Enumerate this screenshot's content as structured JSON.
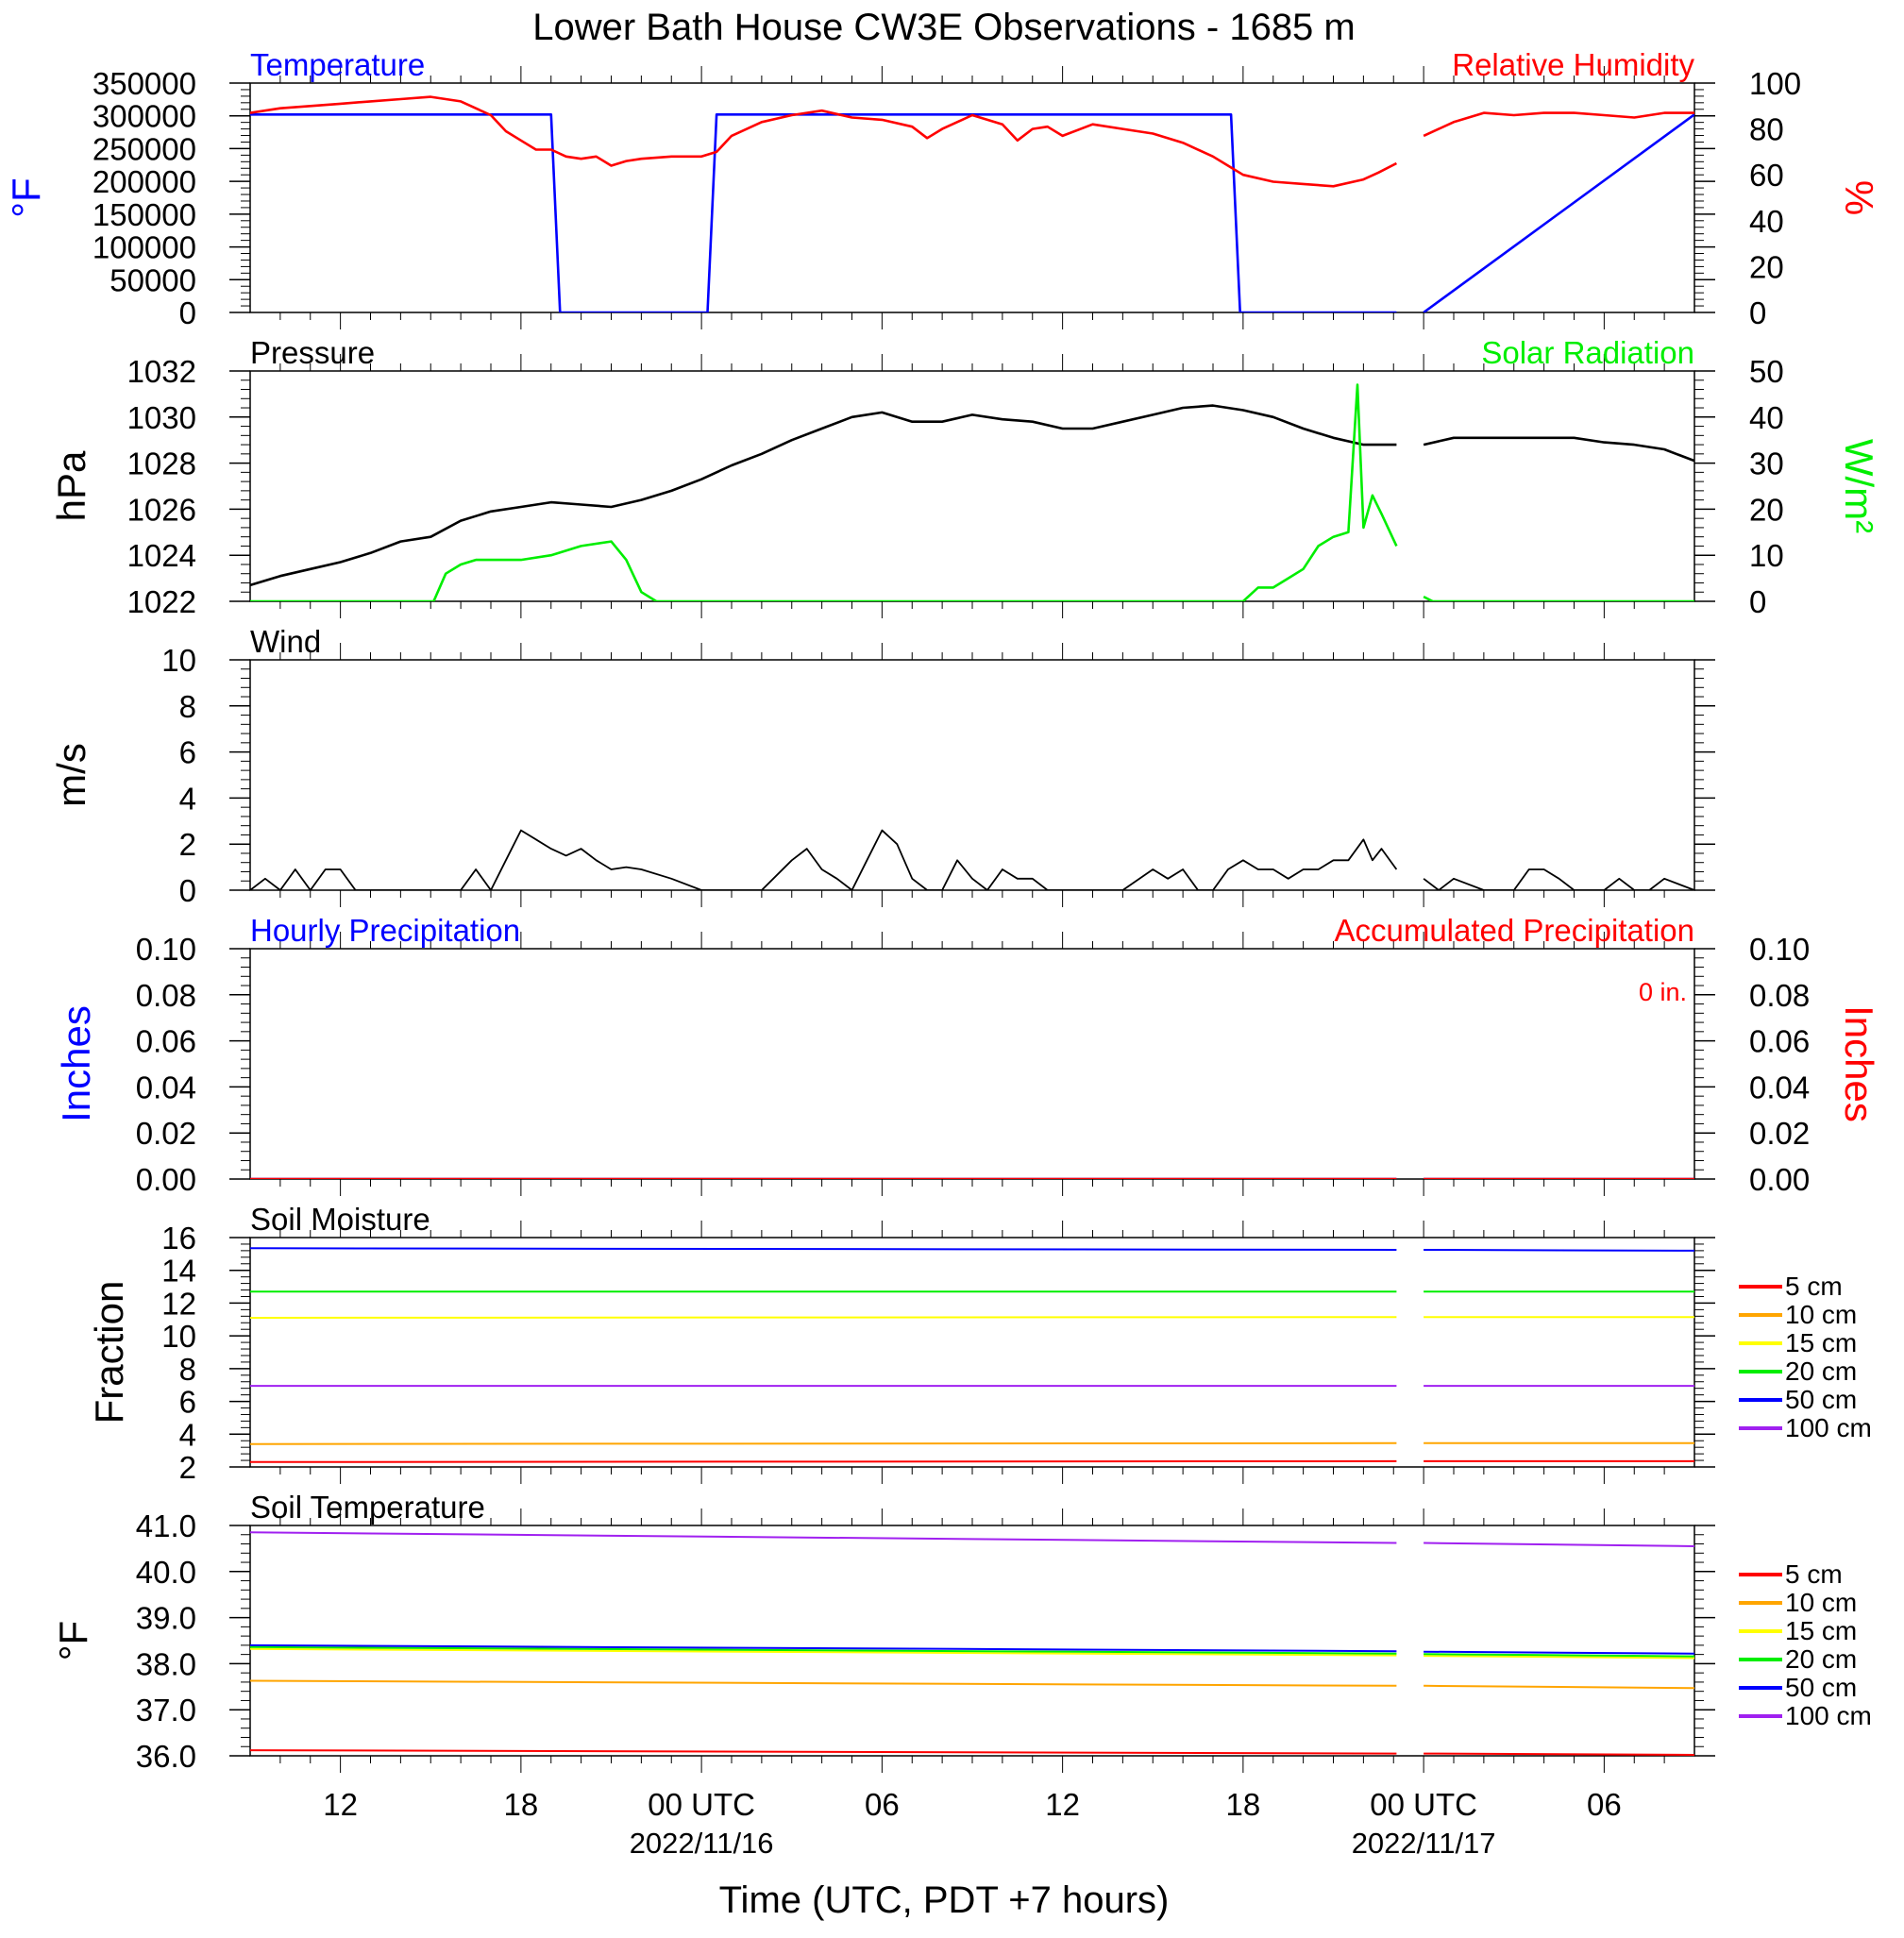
{
  "title": "Lower Bath House CW3E Observations - 1685 m",
  "xlabel": "Time (UTC, PDT +7 hours)",
  "x_ticks": [
    {
      "hour": 12,
      "label": "12",
      "sub": ""
    },
    {
      "hour": 18,
      "label": "18",
      "sub": ""
    },
    {
      "hour": 24,
      "label": "00 UTC",
      "sub": "2022/11/16"
    },
    {
      "hour": 30,
      "label": "06",
      "sub": ""
    },
    {
      "hour": 36,
      "label": "12",
      "sub": ""
    },
    {
      "hour": 42,
      "label": "18",
      "sub": ""
    },
    {
      "hour": 48,
      "label": "00 UTC",
      "sub": "2022/11/17"
    },
    {
      "hour": 54,
      "label": "06",
      "sub": ""
    }
  ],
  "x_range_hours": [
    9,
    57
  ],
  "data_gap_hours": [
    47.2,
    48.0
  ],
  "colors": {
    "temperature": "#0000ff",
    "rh": "#ff0000",
    "solar": "#00ee00",
    "black": "#000000",
    "soil": [
      "#ff0000",
      "#ffa500",
      "#ffff00",
      "#00ee00",
      "#0000ff",
      "#a020f0"
    ]
  },
  "legend_labels": [
    "5 cm",
    "10 cm",
    "15 cm",
    "20 cm",
    "50 cm",
    "100 cm"
  ],
  "chart_data": [
    {
      "type": "line",
      "title_left": "Temperature",
      "title_right": "Relative Humidity",
      "ylabel_left": "°F",
      "ylabel_right": "%",
      "ylim_left": [
        0,
        350000
      ],
      "ylim_right": [
        0,
        100
      ],
      "yticks_left": [
        "0",
        "50000",
        "100000",
        "150000",
        "200000",
        "250000",
        "300000",
        "350000"
      ],
      "yticks_right": [
        "0",
        "20",
        "40",
        "60",
        "80",
        "100"
      ],
      "series": [
        {
          "name": "Temperature",
          "axis": "left",
          "x": [
            9,
            19,
            19.3,
            24.2,
            24.5,
            41.6,
            41.9,
            47.1,
            47.7,
            48.0,
            57
          ],
          "y": [
            302000,
            302000,
            0,
            0,
            302000,
            302000,
            0,
            0,
            null,
            0,
            302000
          ]
        },
        {
          "name": "Relative Humidity",
          "axis": "right",
          "x": [
            9,
            10,
            11,
            12,
            13,
            14,
            15,
            16,
            17,
            17.5,
            18,
            18.5,
            19,
            19.5,
            20,
            20.5,
            21,
            21.5,
            22,
            23,
            24,
            24.5,
            25,
            26,
            27,
            28,
            29,
            30,
            31,
            31.5,
            32,
            33,
            34,
            34.5,
            35,
            35.5,
            36,
            37,
            38,
            39,
            40,
            41,
            41.5,
            42,
            43,
            44,
            45,
            46,
            46.5,
            47.1,
            47.7,
            48,
            48.5,
            49,
            50,
            51,
            52,
            53,
            54,
            55,
            56,
            57
          ],
          "y": [
            87,
            89,
            90,
            91,
            92,
            93,
            94,
            92,
            86,
            79,
            75,
            71,
            71,
            68,
            67,
            68,
            64,
            66,
            67,
            68,
            68,
            70,
            77,
            83,
            86,
            88,
            85,
            84,
            81,
            76,
            80,
            86,
            82,
            75,
            80,
            81,
            77,
            82,
            80,
            78,
            74,
            68,
            64,
            60,
            57,
            56,
            55,
            58,
            61,
            65,
            null,
            77,
            80,
            83,
            87,
            86,
            87,
            87,
            86,
            85,
            87,
            87
          ]
        }
      ]
    },
    {
      "type": "line",
      "title_left": "Pressure",
      "title_right": "Solar Radiation",
      "ylabel_left": "hPa",
      "ylabel_right": "W/m²",
      "ylim_left": [
        1022,
        1032
      ],
      "ylim_right": [
        0,
        50
      ],
      "yticks_left": [
        "1022",
        "1024",
        "1026",
        "1028",
        "1030",
        "1032"
      ],
      "yticks_right": [
        "0",
        "10",
        "20",
        "30",
        "40",
        "50"
      ],
      "series": [
        {
          "name": "Pressure",
          "axis": "left",
          "x": [
            9,
            10,
            11,
            12,
            13,
            14,
            15,
            16,
            17,
            18,
            19,
            20,
            21,
            22,
            23,
            24,
            25,
            26,
            27,
            28,
            29,
            30,
            31,
            32,
            33,
            34,
            35,
            36,
            37,
            38,
            39,
            40,
            41,
            42,
            43,
            44,
            45,
            46,
            47.1,
            47.7,
            48.0,
            49,
            50,
            51,
            52,
            53,
            54,
            55,
            56,
            57
          ],
          "y": [
            1022.7,
            1023.1,
            1023.4,
            1023.7,
            1024.1,
            1024.6,
            1024.8,
            1025.5,
            1025.9,
            1026.1,
            1026.3,
            1026.2,
            1026.1,
            1026.4,
            1026.8,
            1027.3,
            1027.9,
            1028.4,
            1029.0,
            1029.5,
            1030.0,
            1030.2,
            1029.8,
            1029.8,
            1030.1,
            1029.9,
            1029.8,
            1029.5,
            1029.5,
            1029.8,
            1030.1,
            1030.4,
            1030.5,
            1030.3,
            1030.0,
            1029.5,
            1029.1,
            1028.8,
            1028.8,
            null,
            1028.8,
            1029.1,
            1029.1,
            1029.1,
            1029.1,
            1029.1,
            1028.9,
            1028.8,
            1028.6,
            1028.1
          ]
        },
        {
          "name": "Solar Radiation",
          "axis": "right",
          "x": [
            9,
            15.1,
            15.5,
            16,
            16.5,
            17,
            18,
            19,
            20,
            21,
            21.5,
            22,
            22.5,
            23,
            23.5,
            24,
            42,
            42.5,
            43,
            43.5,
            44,
            44.5,
            45,
            45.5,
            45.8,
            46.0,
            46.3,
            46.6,
            47.1,
            47.7,
            48.0,
            48.3,
            57
          ],
          "y": [
            0,
            0,
            6,
            8,
            9,
            9,
            9,
            10,
            12,
            13,
            9,
            2,
            0,
            0,
            0,
            0,
            0,
            3,
            3,
            5,
            7,
            12,
            14,
            15,
            47,
            16,
            23,
            19,
            12,
            null,
            1,
            0,
            0
          ]
        }
      ]
    },
    {
      "type": "line",
      "title_left": "Wind",
      "title_right": "",
      "ylabel_left": "m/s",
      "ylabel_right": "",
      "ylim_left": [
        0,
        10
      ],
      "yticks_left": [
        "0",
        "2",
        "4",
        "6",
        "8",
        "10"
      ],
      "yticks_right": [],
      "series": [
        {
          "name": "Wind",
          "axis": "left",
          "x": [
            9,
            9.5,
            10,
            10.5,
            11,
            11.5,
            12,
            12.5,
            13,
            13.5,
            14,
            15,
            16,
            16.5,
            17,
            17.5,
            18,
            18.5,
            19,
            19.5,
            20,
            20.5,
            21,
            21.5,
            22,
            23,
            24,
            25,
            26,
            27,
            27.5,
            28,
            28.5,
            29,
            29.5,
            30,
            30.5,
            31,
            31.5,
            32,
            32.5,
            33,
            33.5,
            34,
            34.5,
            35,
            35.5,
            36,
            37,
            38,
            39,
            39.5,
            40,
            40.5,
            41,
            41.5,
            42,
            42.5,
            43,
            43.5,
            44,
            44.5,
            45,
            45.5,
            46,
            46.3,
            46.6,
            47.1,
            47.7,
            48.0,
            48.5,
            49,
            50,
            51,
            51.5,
            52,
            52.5,
            53,
            54,
            54.5,
            55,
            55.5,
            56,
            57
          ],
          "y": [
            0,
            0.5,
            0,
            0.9,
            0,
            0.9,
            0.9,
            0,
            0,
            0,
            0,
            0,
            0,
            0.9,
            0,
            1.3,
            2.6,
            2.2,
            1.8,
            1.5,
            1.8,
            1.3,
            0.9,
            1.0,
            0.9,
            0.5,
            0,
            0,
            0,
            1.3,
            1.8,
            0.9,
            0.5,
            0,
            1.3,
            2.6,
            2.0,
            0.5,
            0,
            0,
            1.3,
            0.5,
            0,
            0.9,
            0.5,
            0.5,
            0,
            0,
            0,
            0,
            0.9,
            0.5,
            0.9,
            0,
            0,
            0.9,
            1.3,
            0.9,
            0.9,
            0.5,
            0.9,
            0.9,
            1.3,
            1.3,
            2.2,
            1.3,
            1.8,
            0.9,
            null,
            0.5,
            0,
            0.5,
            0,
            0,
            0.9,
            0.9,
            0.5,
            0,
            0,
            0.5,
            0,
            0,
            0.5,
            0
          ]
        }
      ]
    },
    {
      "type": "line",
      "title_left": "Hourly Precipitation",
      "title_right": "Accumulated Precipitation",
      "annotation": "0 in.",
      "ylabel_left": "Inches",
      "ylabel_right": "Inches",
      "ylim_left": [
        0,
        0.1
      ],
      "ylim_right": [
        0,
        0.1
      ],
      "yticks_left": [
        "0.00",
        "0.02",
        "0.04",
        "0.06",
        "0.08",
        "0.10"
      ],
      "yticks_right": [
        "0.00",
        "0.02",
        "0.04",
        "0.06",
        "0.08",
        "0.10"
      ],
      "series": [
        {
          "name": "Hourly Precipitation",
          "axis": "left",
          "x": [
            9,
            47.1,
            47.7,
            48.0,
            57
          ],
          "y": [
            0,
            0,
            null,
            0,
            0
          ]
        },
        {
          "name": "Accumulated Precipitation",
          "axis": "right",
          "x": [
            9,
            47.1,
            47.7,
            48.0,
            57
          ],
          "y": [
            0,
            0,
            null,
            0,
            0
          ]
        }
      ]
    },
    {
      "type": "line",
      "title_left": "Soil Moisture",
      "title_right": "",
      "ylabel_left": "Fraction",
      "ylabel_right": "",
      "ylim_left": [
        2,
        16
      ],
      "yticks_left": [
        "2",
        "4",
        "6",
        "8",
        "10",
        "12",
        "14",
        "16"
      ],
      "yticks_right": [],
      "legend": "right",
      "series": [
        {
          "name": "5 cm",
          "axis": "left",
          "x": [
            9,
            47.1,
            47.7,
            48.0,
            57
          ],
          "y": [
            2.3,
            2.35,
            null,
            2.35,
            2.35
          ]
        },
        {
          "name": "10 cm",
          "axis": "left",
          "x": [
            9,
            47.1,
            47.7,
            48.0,
            57
          ],
          "y": [
            3.4,
            3.45,
            null,
            3.45,
            3.45
          ]
        },
        {
          "name": "15 cm",
          "axis": "left",
          "x": [
            9,
            47.1,
            47.7,
            48.0,
            57
          ],
          "y": [
            11.1,
            11.15,
            null,
            11.15,
            11.15
          ]
        },
        {
          "name": "20 cm",
          "axis": "left",
          "x": [
            9,
            47.1,
            47.7,
            48.0,
            57
          ],
          "y": [
            12.7,
            12.7,
            null,
            12.7,
            12.7
          ]
        },
        {
          "name": "50 cm",
          "axis": "left",
          "x": [
            9,
            47.1,
            47.7,
            48.0,
            57
          ],
          "y": [
            15.35,
            15.25,
            null,
            15.25,
            15.2
          ]
        },
        {
          "name": "100 cm",
          "axis": "left",
          "x": [
            9,
            47.1,
            47.7,
            48.0,
            57
          ],
          "y": [
            6.95,
            6.95,
            null,
            6.95,
            6.95
          ]
        }
      ]
    },
    {
      "type": "line",
      "title_left": "Soil Temperature",
      "title_right": "",
      "ylabel_left": "°F",
      "ylabel_right": "",
      "ylim_left": [
        36,
        41
      ],
      "yticks_left": [
        "36.0",
        "37.0",
        "38.0",
        "39.0",
        "40.0",
        "41.0"
      ],
      "yticks_right": [],
      "legend": "right",
      "series": [
        {
          "name": "5 cm",
          "axis": "left",
          "x": [
            9,
            47.1,
            47.7,
            48.0,
            57
          ],
          "y": [
            36.12,
            36.05,
            null,
            36.05,
            36.02
          ]
        },
        {
          "name": "10 cm",
          "axis": "left",
          "x": [
            9,
            47.1,
            47.7,
            48.0,
            57
          ],
          "y": [
            37.63,
            37.52,
            null,
            37.52,
            37.47
          ]
        },
        {
          "name": "15 cm",
          "axis": "left",
          "x": [
            9,
            47.1,
            47.7,
            48.0,
            57
          ],
          "y": [
            38.32,
            38.18,
            null,
            38.17,
            38.12
          ]
        },
        {
          "name": "20 cm",
          "axis": "left",
          "x": [
            9,
            47.1,
            47.7,
            48.0,
            57
          ],
          "y": [
            38.36,
            38.22,
            null,
            38.21,
            38.16
          ]
        },
        {
          "name": "50 cm",
          "axis": "left",
          "x": [
            9,
            47.1,
            47.7,
            48.0,
            57
          ],
          "y": [
            38.4,
            38.27,
            null,
            38.26,
            38.22
          ]
        },
        {
          "name": "100 cm",
          "axis": "left",
          "x": [
            9,
            47.1,
            47.7,
            48.0,
            57
          ],
          "y": [
            40.85,
            40.62,
            null,
            40.62,
            40.55
          ]
        }
      ]
    }
  ]
}
